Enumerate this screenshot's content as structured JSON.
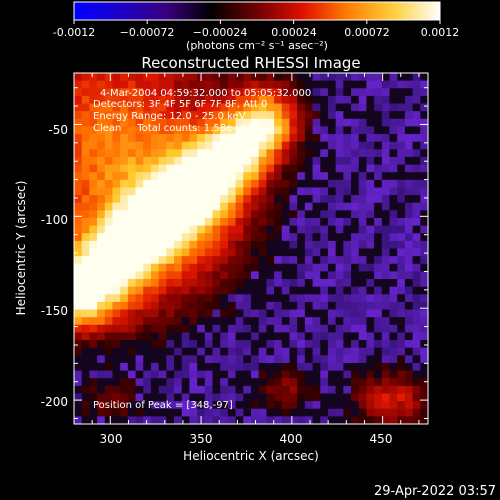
{
  "colorbar": {
    "ticks": [
      "-0.0012",
      "−0.00072",
      "−0.00024",
      "0.00024",
      "0.00072",
      "0.0012"
    ],
    "units": "(photons cm⁻² s⁻¹ asec⁻²)",
    "range": [
      -0.0012,
      0.0012
    ],
    "stops": [
      "#0000ff",
      "#1a00c8",
      "#3a0080",
      "#000000",
      "#700000",
      "#e01000",
      "#ff8000",
      "#ffd040",
      "#ffffff"
    ]
  },
  "chart_data": {
    "type": "heatmap",
    "title": "Reconstructed RHESSI Image",
    "xlabel": "Heliocentric X (arcsec)",
    "ylabel": "Heliocentric Y (arcsec)",
    "xlim": [
      280,
      475
    ],
    "ylim": [
      -213,
      -22
    ],
    "xticks": [
      "300",
      "350",
      "400",
      "450"
    ],
    "yticks": [
      "-50",
      "-100",
      "-150",
      "-200"
    ],
    "colors": {
      "negative": "#5a1fb0",
      "positive": "#ffffff"
    },
    "annotations": [
      "4-Mar-2004 04:59:32.000 to 05:05:32.000",
      "Detectors: 3F 4F 5F 6F 7F 8F, Att 0",
      "Energy Range: 12.0 - 25.0 keV",
      "Clean     Total counts: 1.58e+05",
      "Position of Peak = [348,-97]"
    ],
    "peak": {
      "x": 348,
      "y": -97
    }
  },
  "footer": {
    "timestamp": "29-Apr-2022 03:57"
  }
}
